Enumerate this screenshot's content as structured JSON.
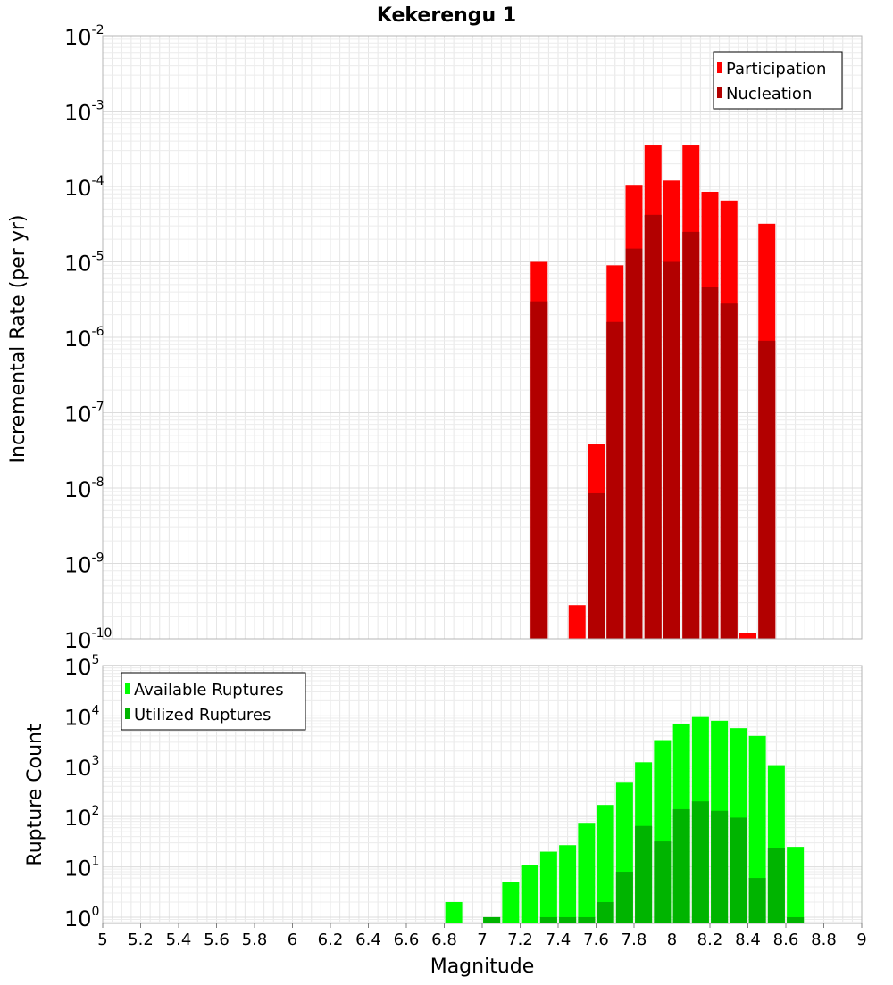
{
  "chart_data": [
    {
      "type": "bar",
      "title": "Kekerengu 1",
      "ylabel": "Incremental Rate (per yr)",
      "xlabel": "Magnitude",
      "yscale": "log",
      "ylim": [
        1e-10,
        0.01
      ],
      "xlim": [
        5,
        9
      ],
      "ytick_exponents": [
        -10,
        -9,
        -8,
        -7,
        -6,
        -5,
        -4,
        -3,
        -2
      ],
      "legend_position": "top-right",
      "grid": true,
      "x": [
        7.3,
        7.5,
        7.6,
        7.7,
        7.8,
        7.9,
        8.0,
        8.1,
        8.2,
        8.3,
        8.4,
        8.5
      ],
      "series": [
        {
          "name": "Participation",
          "color": "#ff0000",
          "values": [
            1e-05,
            2.8e-10,
            3.8e-08,
            9e-06,
            0.000105,
            0.00035,
            0.00012,
            0.00035,
            8.5e-05,
            6.5e-05,
            1.2e-10,
            3.2e-05
          ]
        },
        {
          "name": "Nucleation",
          "color": "#b20000",
          "values": [
            3e-06,
            null,
            8.5e-09,
            1.6e-06,
            1.5e-05,
            4.2e-05,
            1e-05,
            2.5e-05,
            4.6e-06,
            2.8e-06,
            null,
            9e-07
          ]
        }
      ]
    },
    {
      "type": "bar",
      "ylabel": "Rupture Count",
      "xlabel": "Magnitude",
      "yscale": "log",
      "ylim": [
        0.75,
        100000
      ],
      "xlim": [
        5,
        9
      ],
      "ytick_exponents": [
        0,
        1,
        2,
        3,
        4,
        5
      ],
      "xticks": [
        "5",
        "5.2",
        "5.4",
        "5.6",
        "5.8",
        "6",
        "6.2",
        "6.4",
        "6.6",
        "6.8",
        "7",
        "7.2",
        "7.4",
        "7.6",
        "7.8",
        "8",
        "8.2",
        "8.4",
        "8.6",
        "8.8",
        "9"
      ],
      "legend_position": "top-left",
      "grid": true,
      "x": [
        6.85,
        7.05,
        7.15,
        7.25,
        7.35,
        7.45,
        7.55,
        7.65,
        7.75,
        7.85,
        7.95,
        8.05,
        8.15,
        8.25,
        8.35,
        8.45,
        8.55,
        8.65
      ],
      "series": [
        {
          "name": "Available Ruptures",
          "color": "#00ff00",
          "values": [
            2,
            1,
            5,
            11,
            20,
            27,
            75,
            170,
            470,
            1200,
            3300,
            6800,
            9500,
            8000,
            5700,
            4000,
            1050,
            25
          ]
        },
        {
          "name": "Utilized Ruptures",
          "color": "#00b400",
          "values": [
            null,
            1,
            null,
            null,
            1,
            1,
            1,
            2,
            8,
            65,
            32,
            140,
            200,
            130,
            95,
            6,
            24,
            1
          ]
        }
      ]
    }
  ]
}
